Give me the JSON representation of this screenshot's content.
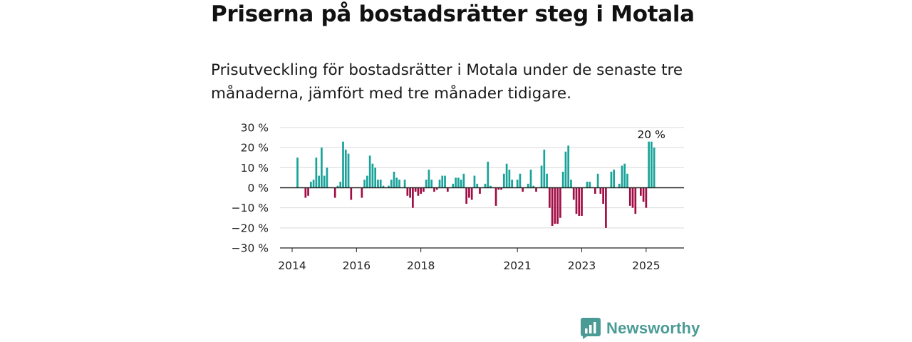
{
  "title": "Priserna på bostadsrätter steg i Motala",
  "subtitle": "Prisutveckling för bostadsrätter i Motala under de senaste tre månaderna, jämfört med tre månader tidigare.",
  "brand": "Newsworthy",
  "colors": {
    "positive": "#1aa39a",
    "negative": "#a10e45",
    "grid": "#d9d9d9",
    "axis": "#222222",
    "brand": "#4a9b95"
  },
  "chart_data": {
    "type": "bar",
    "x_unit": "month",
    "start_month": "2014-03",
    "ylim": [
      -30,
      30
    ],
    "yticks": [
      30,
      20,
      10,
      0,
      -10,
      -20,
      -30
    ],
    "ytick_labels": [
      "30 %",
      "20 %",
      "10 %",
      "0 %",
      "−10 %",
      "−20 %",
      "−30 %"
    ],
    "xticks": [
      {
        "label": "2014",
        "date": "2014-01"
      },
      {
        "label": "2016",
        "date": "2016-01"
      },
      {
        "label": "2018",
        "date": "2018-01"
      },
      {
        "label": "2021",
        "date": "2021-01"
      },
      {
        "label": "2023",
        "date": "2023-01"
      },
      {
        "label": "2025",
        "date": "2025-01"
      }
    ],
    "grid": true,
    "values": [
      15,
      0,
      0,
      -5,
      -4,
      3,
      4,
      15,
      6,
      20,
      6,
      10,
      0,
      0,
      -5,
      1,
      3,
      23,
      19,
      17,
      -6,
      0,
      0,
      0,
      -5,
      4,
      6,
      16,
      12,
      10,
      4,
      4,
      1,
      0,
      1,
      4,
      8,
      5,
      4,
      0,
      4,
      -4,
      -5,
      -10,
      -2,
      -4,
      -3,
      -2,
      4,
      9,
      4,
      -2,
      -1,
      4,
      6,
      6,
      -2,
      0,
      2,
      5,
      5,
      4,
      7,
      -8,
      -5,
      -6,
      6,
      2,
      -3,
      0,
      2,
      13,
      1,
      0,
      -9,
      -1,
      -1,
      7,
      12,
      9,
      4,
      0,
      4,
      7,
      -2,
      0,
      2,
      9,
      1,
      -2,
      0,
      11,
      19,
      7,
      -10,
      -19,
      -18,
      -18,
      -15,
      8,
      18,
      21,
      4,
      -6,
      -13,
      -14,
      -14,
      0,
      3,
      3,
      0,
      -3,
      7,
      -3,
      -8,
      -20,
      0,
      8,
      9,
      0,
      2,
      11,
      12,
      7,
      -9,
      -10,
      -13,
      0,
      -4,
      -7,
      -10,
      23,
      23,
      20
    ],
    "annotation": {
      "text": "20 %"
    }
  }
}
